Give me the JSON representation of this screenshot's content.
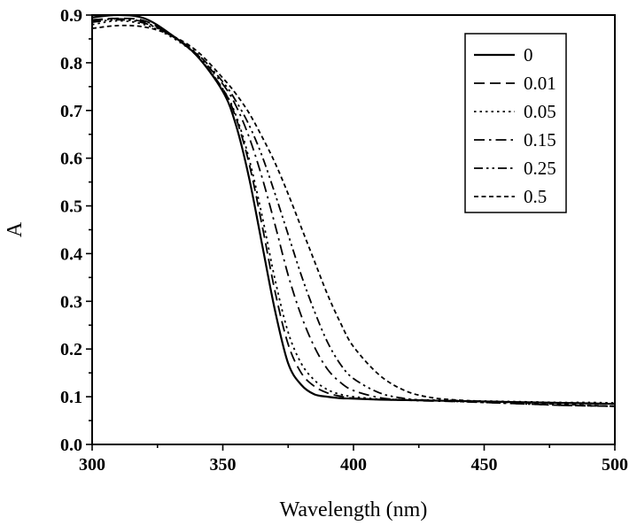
{
  "chart_data": {
    "type": "line",
    "title": "",
    "xlabel": "Wavelength (nm)",
    "ylabel": "A",
    "xlim": [
      300,
      500
    ],
    "ylim": [
      0.0,
      0.9
    ],
    "x_ticks": [
      "300",
      "350",
      "400",
      "450",
      "500"
    ],
    "y_ticks": [
      "0.0",
      "0.1",
      "0.2",
      "0.3",
      "0.4",
      "0.5",
      "0.6",
      "0.7",
      "0.8",
      "0.9"
    ],
    "legend_position": "top-right",
    "grid": false,
    "x": [
      300,
      310,
      320,
      330,
      340,
      350,
      355,
      360,
      365,
      370,
      375,
      380,
      385,
      390,
      395,
      400,
      410,
      420,
      430,
      440,
      450,
      460,
      470,
      480,
      490,
      500
    ],
    "series": [
      {
        "name": "0",
        "dash": "solid",
        "values": [
          0.895,
          0.9,
          0.893,
          0.86,
          0.815,
          0.74,
          0.67,
          0.56,
          0.42,
          0.28,
          0.17,
          0.125,
          0.105,
          0.1,
          0.097,
          0.096,
          0.094,
          0.093,
          0.092,
          0.091,
          0.09,
          0.089,
          0.088,
          0.087,
          0.086,
          0.085
        ]
      },
      {
        "name": "0.01",
        "dash": "dash",
        "values": [
          0.89,
          0.893,
          0.888,
          0.858,
          0.815,
          0.745,
          0.685,
          0.59,
          0.46,
          0.32,
          0.21,
          0.15,
          0.122,
          0.108,
          0.101,
          0.097,
          0.094,
          0.093,
          0.092,
          0.091,
          0.09,
          0.089,
          0.088,
          0.087,
          0.086,
          0.085
        ]
      },
      {
        "name": "0.05",
        "dash": "dot",
        "values": [
          0.88,
          0.888,
          0.88,
          0.855,
          0.815,
          0.745,
          0.69,
          0.6,
          0.48,
          0.345,
          0.235,
          0.17,
          0.135,
          0.115,
          0.105,
          0.1,
          0.095,
          0.094,
          0.093,
          0.092,
          0.091,
          0.09,
          0.089,
          0.088,
          0.088,
          0.087
        ]
      },
      {
        "name": "0.15",
        "dash": "dashdot",
        "values": [
          0.888,
          0.892,
          0.885,
          0.858,
          0.818,
          0.755,
          0.71,
          0.645,
          0.56,
          0.46,
          0.355,
          0.27,
          0.205,
          0.158,
          0.13,
          0.113,
          0.098,
          0.093,
          0.091,
          0.09,
          0.088,
          0.086,
          0.084,
          0.082,
          0.081,
          0.08
        ]
      },
      {
        "name": "0.25",
        "dash": "dashdotdot",
        "values": [
          0.885,
          0.89,
          0.883,
          0.858,
          0.82,
          0.76,
          0.72,
          0.67,
          0.605,
          0.525,
          0.44,
          0.355,
          0.28,
          0.215,
          0.168,
          0.138,
          0.108,
          0.096,
          0.092,
          0.09,
          0.088,
          0.086,
          0.084,
          0.082,
          0.081,
          0.08
        ]
      },
      {
        "name": "0.5",
        "dash": "shortdash",
        "values": [
          0.872,
          0.878,
          0.875,
          0.858,
          0.825,
          0.768,
          0.735,
          0.695,
          0.645,
          0.59,
          0.525,
          0.455,
          0.385,
          0.315,
          0.255,
          0.205,
          0.145,
          0.112,
          0.098,
          0.093,
          0.09,
          0.088,
          0.086,
          0.084,
          0.082,
          0.08
        ]
      }
    ]
  }
}
